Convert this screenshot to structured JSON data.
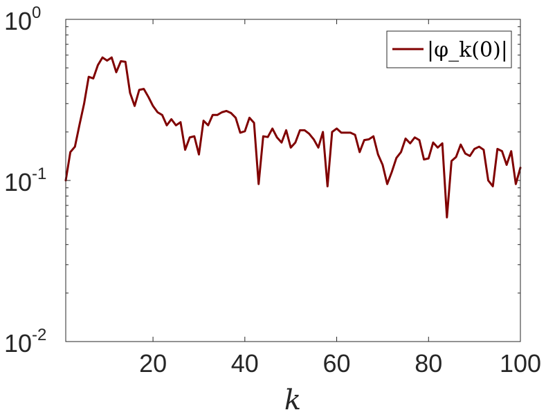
{
  "chart_data": {
    "type": "line",
    "xlabel": "k",
    "ylabel": "",
    "title": "",
    "xlim": [
      1,
      100
    ],
    "ylim": [
      0.01,
      1
    ],
    "yscale": "log",
    "xticks": [
      20,
      40,
      60,
      80,
      100
    ],
    "yticks": [
      {
        "value": 0.01,
        "base": "10",
        "exp": "-2"
      },
      {
        "value": 0.1,
        "base": "10",
        "exp": "-1"
      },
      {
        "value": 1,
        "base": "10",
        "exp": "0"
      }
    ],
    "grid": false,
    "legend": {
      "position": "top-right"
    },
    "series": [
      {
        "name": "|φ_k(0)|",
        "color": "#800000",
        "x": [
          1,
          2,
          3,
          4,
          5,
          6,
          7,
          8,
          9,
          10,
          11,
          12,
          13,
          14,
          15,
          16,
          17,
          18,
          19,
          20,
          21,
          22,
          23,
          24,
          25,
          26,
          27,
          28,
          29,
          30,
          31,
          32,
          33,
          34,
          35,
          36,
          37,
          38,
          39,
          40,
          41,
          42,
          43,
          44,
          45,
          46,
          47,
          48,
          49,
          50,
          51,
          52,
          53,
          54,
          55,
          56,
          57,
          58,
          59,
          60,
          61,
          62,
          63,
          64,
          65,
          66,
          67,
          68,
          69,
          70,
          71,
          72,
          73,
          74,
          75,
          76,
          77,
          78,
          79,
          80,
          81,
          82,
          83,
          84,
          85,
          86,
          87,
          88,
          89,
          90,
          91,
          92,
          93,
          94,
          95,
          96,
          97,
          98,
          99,
          100
        ],
        "y": [
          0.1,
          0.15,
          0.162,
          0.222,
          0.3,
          0.44,
          0.43,
          0.52,
          0.58,
          0.555,
          0.58,
          0.47,
          0.55,
          0.545,
          0.35,
          0.29,
          0.365,
          0.37,
          0.33,
          0.29,
          0.265,
          0.255,
          0.22,
          0.24,
          0.22,
          0.23,
          0.155,
          0.185,
          0.188,
          0.145,
          0.235,
          0.22,
          0.255,
          0.255,
          0.265,
          0.27,
          0.262,
          0.245,
          0.198,
          0.202,
          0.245,
          0.228,
          0.095,
          0.188,
          0.186,
          0.21,
          0.185,
          0.172,
          0.205,
          0.16,
          0.172,
          0.205,
          0.205,
          0.195,
          0.18,
          0.16,
          0.2,
          0.092,
          0.2,
          0.21,
          0.198,
          0.198,
          0.198,
          0.192,
          0.15,
          0.178,
          0.18,
          0.188,
          0.145,
          0.125,
          0.095,
          0.113,
          0.138,
          0.15,
          0.182,
          0.17,
          0.185,
          0.178,
          0.135,
          0.137,
          0.172,
          0.16,
          0.17,
          0.059,
          0.132,
          0.14,
          0.167,
          0.147,
          0.142,
          0.157,
          0.162,
          0.155,
          0.1,
          0.092,
          0.157,
          0.152,
          0.125,
          0.152,
          0.095,
          0.12
        ]
      }
    ]
  }
}
